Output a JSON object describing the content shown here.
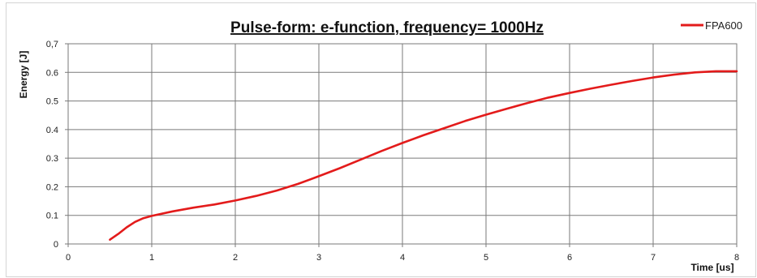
{
  "chart_data": {
    "type": "line",
    "title": "Pulse-form: e-function, frequency= 1000Hz",
    "xlabel": "Time [us]",
    "ylabel": "Energy [J]",
    "xlim": [
      0,
      8
    ],
    "ylim": [
      0,
      0.7
    ],
    "xticks": [
      "0",
      "1",
      "2",
      "3",
      "4",
      "5",
      "6",
      "7",
      "8"
    ],
    "yticks": [
      "0",
      "0.1",
      "0.2",
      "0.3",
      "0.4",
      "0.5",
      "0.6",
      "0,7"
    ],
    "grid": true,
    "legend_position": "top-right",
    "series": [
      {
        "name": "FPA600",
        "color": "#e31b1b",
        "x": [
          0.5,
          0.6,
          0.7,
          0.8,
          0.9,
          1.0,
          1.25,
          1.5,
          1.75,
          2.0,
          2.25,
          2.5,
          2.75,
          3.0,
          3.25,
          3.5,
          3.75,
          4.0,
          4.25,
          4.5,
          4.75,
          5.0,
          5.25,
          5.5,
          5.75,
          6.0,
          6.25,
          6.5,
          6.75,
          7.0,
          7.25,
          7.5,
          7.75,
          8.0
        ],
        "y": [
          0.015,
          0.035,
          0.058,
          0.077,
          0.09,
          0.098,
          0.114,
          0.127,
          0.138,
          0.152,
          0.168,
          0.187,
          0.21,
          0.237,
          0.265,
          0.295,
          0.325,
          0.353,
          0.38,
          0.405,
          0.43,
          0.452,
          0.473,
          0.493,
          0.512,
          0.528,
          0.543,
          0.557,
          0.57,
          0.582,
          0.592,
          0.6,
          0.604,
          0.604
        ]
      }
    ]
  }
}
